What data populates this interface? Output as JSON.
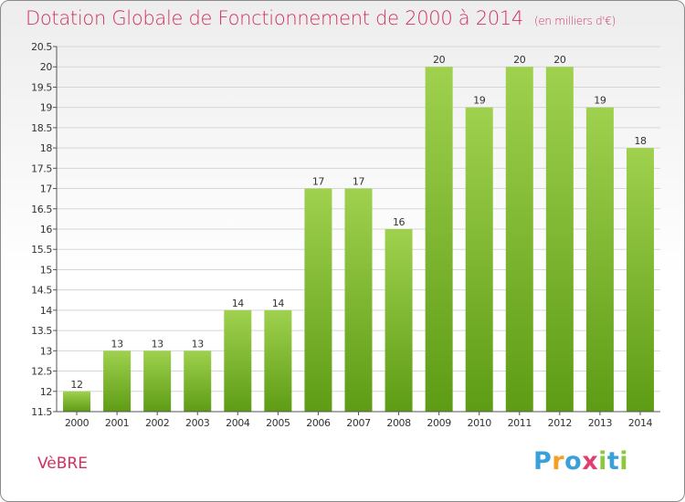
{
  "title": "Dotation Globale de Fonctionnement de 2000 à 2014",
  "subtitle": "(en milliers d'€)",
  "commune": "VèBRE",
  "logo": {
    "text": "Proxiti",
    "letters": [
      {
        "char": "P",
        "color": "#3aa0d8"
      },
      {
        "char": "r",
        "color": "#f5a020"
      },
      {
        "char": "o",
        "color": "#3aa0d8"
      },
      {
        "char": "x",
        "color": "#e04070"
      },
      {
        "char": "i",
        "color": "#8dc63f"
      },
      {
        "char": "t",
        "color": "#3aa0d8"
      },
      {
        "char": "i",
        "color": "#8dc63f"
      }
    ]
  },
  "chart_data": {
    "type": "bar",
    "title": "Dotation Globale de Fonctionnement de 2000 à 2014",
    "subtitle": "(en milliers d'€)",
    "categories": [
      "2000",
      "2001",
      "2002",
      "2003",
      "2004",
      "2005",
      "2006",
      "2007",
      "2008",
      "2009",
      "2010",
      "2011",
      "2012",
      "2013",
      "2014"
    ],
    "values": [
      12,
      13,
      13,
      13,
      14,
      14,
      17,
      17,
      16,
      20,
      19,
      20,
      20,
      19,
      18
    ],
    "ylim": [
      11.5,
      20.5
    ],
    "yticks": [
      "11.5",
      "12",
      "12.5",
      "13",
      "13.5",
      "14",
      "14.5",
      "15",
      "15.5",
      "16",
      "16.5",
      "17",
      "17.5",
      "18",
      "18.5",
      "19",
      "19.5",
      "20",
      "20.5"
    ],
    "grid": true,
    "colors": {
      "bar_top": "#9fd14e",
      "bar_bottom": "#5e9c15",
      "grid": "#d6d6d6",
      "axis": "#555555",
      "title": "#d0325f"
    }
  }
}
